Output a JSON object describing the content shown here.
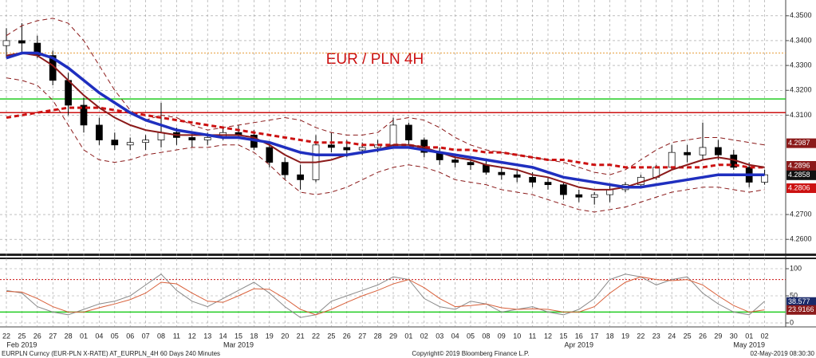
{
  "chart_data": [
    {
      "type": "candlestick",
      "title": "EUR / PLN 4H",
      "categories": [
        "22",
        "25",
        "26",
        "27",
        "28",
        "01",
        "04",
        "05",
        "06",
        "07",
        "08",
        "11",
        "12",
        "13",
        "14",
        "15",
        "18",
        "19",
        "20",
        "21",
        "22",
        "25",
        "26",
        "27",
        "28",
        "29",
        "01",
        "02",
        "03",
        "04",
        "05",
        "08",
        "09",
        "10",
        "11",
        "12",
        "15",
        "16",
        "17",
        "18",
        "19",
        "22",
        "23",
        "24",
        "25",
        "26",
        "29",
        "30",
        "01",
        "02"
      ],
      "periods": [
        {
          "label": "Feb 2019",
          "category": 1
        },
        {
          "label": "Mar 2019",
          "category": 15
        },
        {
          "label": "Apr 2019",
          "category": 37
        },
        {
          "label": "May 2019",
          "category": 48
        }
      ],
      "open": [
        4.338,
        4.34,
        4.339,
        4.334,
        4.324,
        4.314,
        4.306,
        4.3,
        4.298,
        4.299,
        4.3,
        4.303,
        4.301,
        4.3,
        4.301,
        4.303,
        4.302,
        4.297,
        4.291,
        4.286,
        4.284,
        4.298,
        4.297,
        4.296,
        4.297,
        4.298,
        4.306,
        4.3,
        4.295,
        4.292,
        4.291,
        4.29,
        4.287,
        4.286,
        4.285,
        4.283,
        4.282,
        4.278,
        4.277,
        4.278,
        4.28,
        4.282,
        4.285,
        4.289,
        4.295,
        4.294,
        4.297,
        4.294,
        4.289,
        4.283
      ],
      "high": [
        4.345,
        4.347,
        4.342,
        4.336,
        4.327,
        4.317,
        4.309,
        4.303,
        4.301,
        4.302,
        4.315,
        4.305,
        4.303,
        4.303,
        4.305,
        4.306,
        4.304,
        4.299,
        4.293,
        4.29,
        4.302,
        4.303,
        4.3,
        4.299,
        4.3,
        4.309,
        4.307,
        4.301,
        4.297,
        4.294,
        4.293,
        4.292,
        4.289,
        4.288,
        4.287,
        4.285,
        4.283,
        4.28,
        4.279,
        4.282,
        4.283,
        4.286,
        4.29,
        4.298,
        4.298,
        4.307,
        4.3,
        4.296,
        4.291,
        4.288
      ],
      "low": [
        4.333,
        4.335,
        4.333,
        4.322,
        4.31,
        4.303,
        4.298,
        4.296,
        4.296,
        4.296,
        4.297,
        4.298,
        4.297,
        4.298,
        4.3,
        4.301,
        4.296,
        4.289,
        4.284,
        4.28,
        4.283,
        4.295,
        4.293,
        4.294,
        4.295,
        4.297,
        4.298,
        4.293,
        4.29,
        4.289,
        4.288,
        4.286,
        4.284,
        4.283,
        4.281,
        4.28,
        4.276,
        4.275,
        4.274,
        4.275,
        4.279,
        4.281,
        4.284,
        4.288,
        4.291,
        4.292,
        4.292,
        4.288,
        4.281,
        4.282
      ],
      "close": [
        4.34,
        4.339,
        4.334,
        4.324,
        4.314,
        4.306,
        4.3,
        4.298,
        4.299,
        4.3,
        4.303,
        4.301,
        4.3,
        4.301,
        4.303,
        4.302,
        4.297,
        4.291,
        4.286,
        4.284,
        4.298,
        4.297,
        4.296,
        4.297,
        4.298,
        4.306,
        4.3,
        4.295,
        4.292,
        4.291,
        4.29,
        4.287,
        4.286,
        4.285,
        4.283,
        4.282,
        4.278,
        4.277,
        4.278,
        4.28,
        4.282,
        4.285,
        4.289,
        4.295,
        4.294,
        4.297,
        4.294,
        4.289,
        4.283,
        4.286
      ],
      "up_color": "#ffffff",
      "down_color": "#000000",
      "series": [
        {
          "color": "#8b1a1a",
          "dash": true,
          "width": 1,
          "values": [
            4.342,
            4.346,
            4.348,
            4.349,
            4.347,
            4.34,
            4.33,
            4.32,
            4.312,
            4.308,
            4.31,
            4.309,
            4.306,
            4.304,
            4.305,
            4.306,
            4.307,
            4.308,
            4.309,
            4.308,
            4.305,
            4.303,
            4.302,
            4.302,
            4.303,
            4.308,
            4.309,
            4.308,
            4.305,
            4.301,
            4.298,
            4.296,
            4.295,
            4.294,
            4.293,
            4.292,
            4.291,
            4.289,
            4.287,
            4.286,
            4.288,
            4.292,
            4.296,
            4.299,
            4.3,
            4.301,
            4.301,
            4.3,
            4.299,
            4.298
          ]
        },
        {
          "color": "#8b1a1a",
          "dash": true,
          "width": 1,
          "values": [
            4.325,
            4.324,
            4.322,
            4.316,
            4.306,
            4.296,
            4.292,
            4.291,
            4.292,
            4.294,
            4.295,
            4.296,
            4.297,
            4.297,
            4.298,
            4.298,
            4.295,
            4.29,
            4.284,
            4.279,
            4.278,
            4.279,
            4.281,
            4.284,
            4.287,
            4.289,
            4.29,
            4.289,
            4.287,
            4.284,
            4.283,
            4.282,
            4.28,
            4.279,
            4.278,
            4.276,
            4.274,
            4.272,
            4.271,
            4.272,
            4.273,
            4.275,
            4.277,
            4.279,
            4.28,
            4.281,
            4.281,
            4.28,
            4.279,
            4.28
          ]
        },
        {
          "color": "#cc1111",
          "dash": true,
          "width": 3,
          "values": [
            4.309,
            4.31,
            4.311,
            4.312,
            4.313,
            4.313,
            4.313,
            4.312,
            4.311,
            4.31,
            4.309,
            4.308,
            4.307,
            4.306,
            4.305,
            4.304,
            4.303,
            4.302,
            4.301,
            4.3,
            4.299,
            4.299,
            4.299,
            4.298,
            4.298,
            4.298,
            4.298,
            4.297,
            4.297,
            4.296,
            4.296,
            4.295,
            4.295,
            4.294,
            4.293,
            4.292,
            4.292,
            4.291,
            4.29,
            4.29,
            4.289,
            4.289,
            4.289,
            4.289,
            4.289,
            4.289,
            4.29,
            4.29,
            4.289,
            4.289
          ]
        },
        {
          "color": "#8b1a1a",
          "dash": false,
          "width": 2,
          "values": [
            4.334,
            4.335,
            4.334,
            4.33,
            4.324,
            4.318,
            4.313,
            4.309,
            4.306,
            4.304,
            4.303,
            4.302,
            4.302,
            4.302,
            4.302,
            4.302,
            4.301,
            4.298,
            4.294,
            4.291,
            4.291,
            4.292,
            4.294,
            4.295,
            4.296,
            4.298,
            4.298,
            4.297,
            4.295,
            4.293,
            4.292,
            4.29,
            4.289,
            4.288,
            4.286,
            4.285,
            4.283,
            4.281,
            4.28,
            4.28,
            4.281,
            4.283,
            4.285,
            4.288,
            4.29,
            4.292,
            4.293,
            4.292,
            4.29,
            4.289
          ]
        },
        {
          "color": "#1f2fbf",
          "dash": false,
          "width": 3.5,
          "values": [
            4.333,
            4.335,
            4.335,
            4.333,
            4.329,
            4.324,
            4.319,
            4.315,
            4.311,
            4.308,
            4.306,
            4.304,
            4.303,
            4.302,
            4.301,
            4.301,
            4.3,
            4.299,
            4.297,
            4.295,
            4.294,
            4.294,
            4.294,
            4.295,
            4.296,
            4.297,
            4.297,
            4.296,
            4.295,
            4.294,
            4.293,
            4.292,
            4.291,
            4.29,
            4.289,
            4.287,
            4.285,
            4.284,
            4.283,
            4.282,
            4.281,
            4.281,
            4.282,
            4.283,
            4.284,
            4.285,
            4.286,
            4.286,
            4.286,
            4.286
          ]
        }
      ],
      "hlines": [
        {
          "value": 4.335,
          "color": "#e8a040",
          "dash": true
        },
        {
          "value": 4.3165,
          "color": "#22cc22",
          "dash": false
        },
        {
          "value": 4.311,
          "color": "#cc1111",
          "dash": false
        }
      ],
      "ylim": [
        4.2575,
        4.3525
      ],
      "yticks": [
        {
          "value": 4.35,
          "label": "4.3500"
        },
        {
          "value": 4.34,
          "label": "4.3400"
        },
        {
          "value": 4.33,
          "label": "4.3300"
        },
        {
          "value": 4.32,
          "label": "4.3200"
        },
        {
          "value": 4.31,
          "label": "4.3100"
        },
        {
          "value": 4.27,
          "label": "4.2700"
        },
        {
          "value": 4.26,
          "label": "4.2600"
        }
      ],
      "last_labels": [
        {
          "value": 4.2987,
          "color": "#8b1a1a"
        },
        {
          "value": 4.2896,
          "color": "#8b1a1a"
        },
        {
          "value": 4.2858,
          "color": "#111111"
        },
        {
          "value": 4.2806,
          "color": "#cc1111"
        }
      ],
      "grid": true
    },
    {
      "type": "line",
      "series": [
        {
          "color": "#8a8a8a",
          "dash": false,
          "width": 1,
          "values": [
            60,
            55,
            30,
            20,
            15,
            25,
            35,
            40,
            50,
            70,
            90,
            60,
            40,
            30,
            45,
            60,
            75,
            55,
            30,
            10,
            15,
            40,
            50,
            60,
            70,
            85,
            80,
            45,
            30,
            25,
            40,
            35,
            20,
            25,
            30,
            20,
            15,
            25,
            45,
            80,
            90,
            85,
            70,
            80,
            85,
            55,
            35,
            20,
            15,
            40
          ]
        },
        {
          "color": "#d9603a",
          "dash": false,
          "width": 1,
          "values": [
            58,
            57,
            45,
            30,
            20,
            20,
            28,
            35,
            43,
            55,
            75,
            72,
            55,
            40,
            38,
            50,
            63,
            62,
            45,
            25,
            15,
            25,
            38,
            50,
            60,
            72,
            80,
            65,
            45,
            30,
            32,
            35,
            28,
            25,
            26,
            25,
            20,
            20,
            30,
            55,
            75,
            85,
            80,
            78,
            80,
            70,
            50,
            32,
            20,
            24
          ]
        }
      ],
      "hlines": [
        {
          "value": 80,
          "color": "#cc1111",
          "dash": true
        },
        {
          "value": 20,
          "color": "#22cc22",
          "dash": false
        }
      ],
      "ylim": [
        0,
        100
      ],
      "yticks": [
        0,
        50,
        100
      ],
      "last_labels": [
        {
          "value": 38.577,
          "color": "#1a2a6a"
        },
        {
          "value": 23.9166,
          "color": "#8b1a1a"
        }
      ],
      "grid": true
    }
  ],
  "footer": {
    "left": "EURPLN Curncy (EUR-PLN X-RATE) AT_EURPLN_4H 60 Days 240 Minutes",
    "center": "Copyright© 2019 Bloomberg Finance L.P.",
    "right": "02-May-2019 08:30:30"
  }
}
